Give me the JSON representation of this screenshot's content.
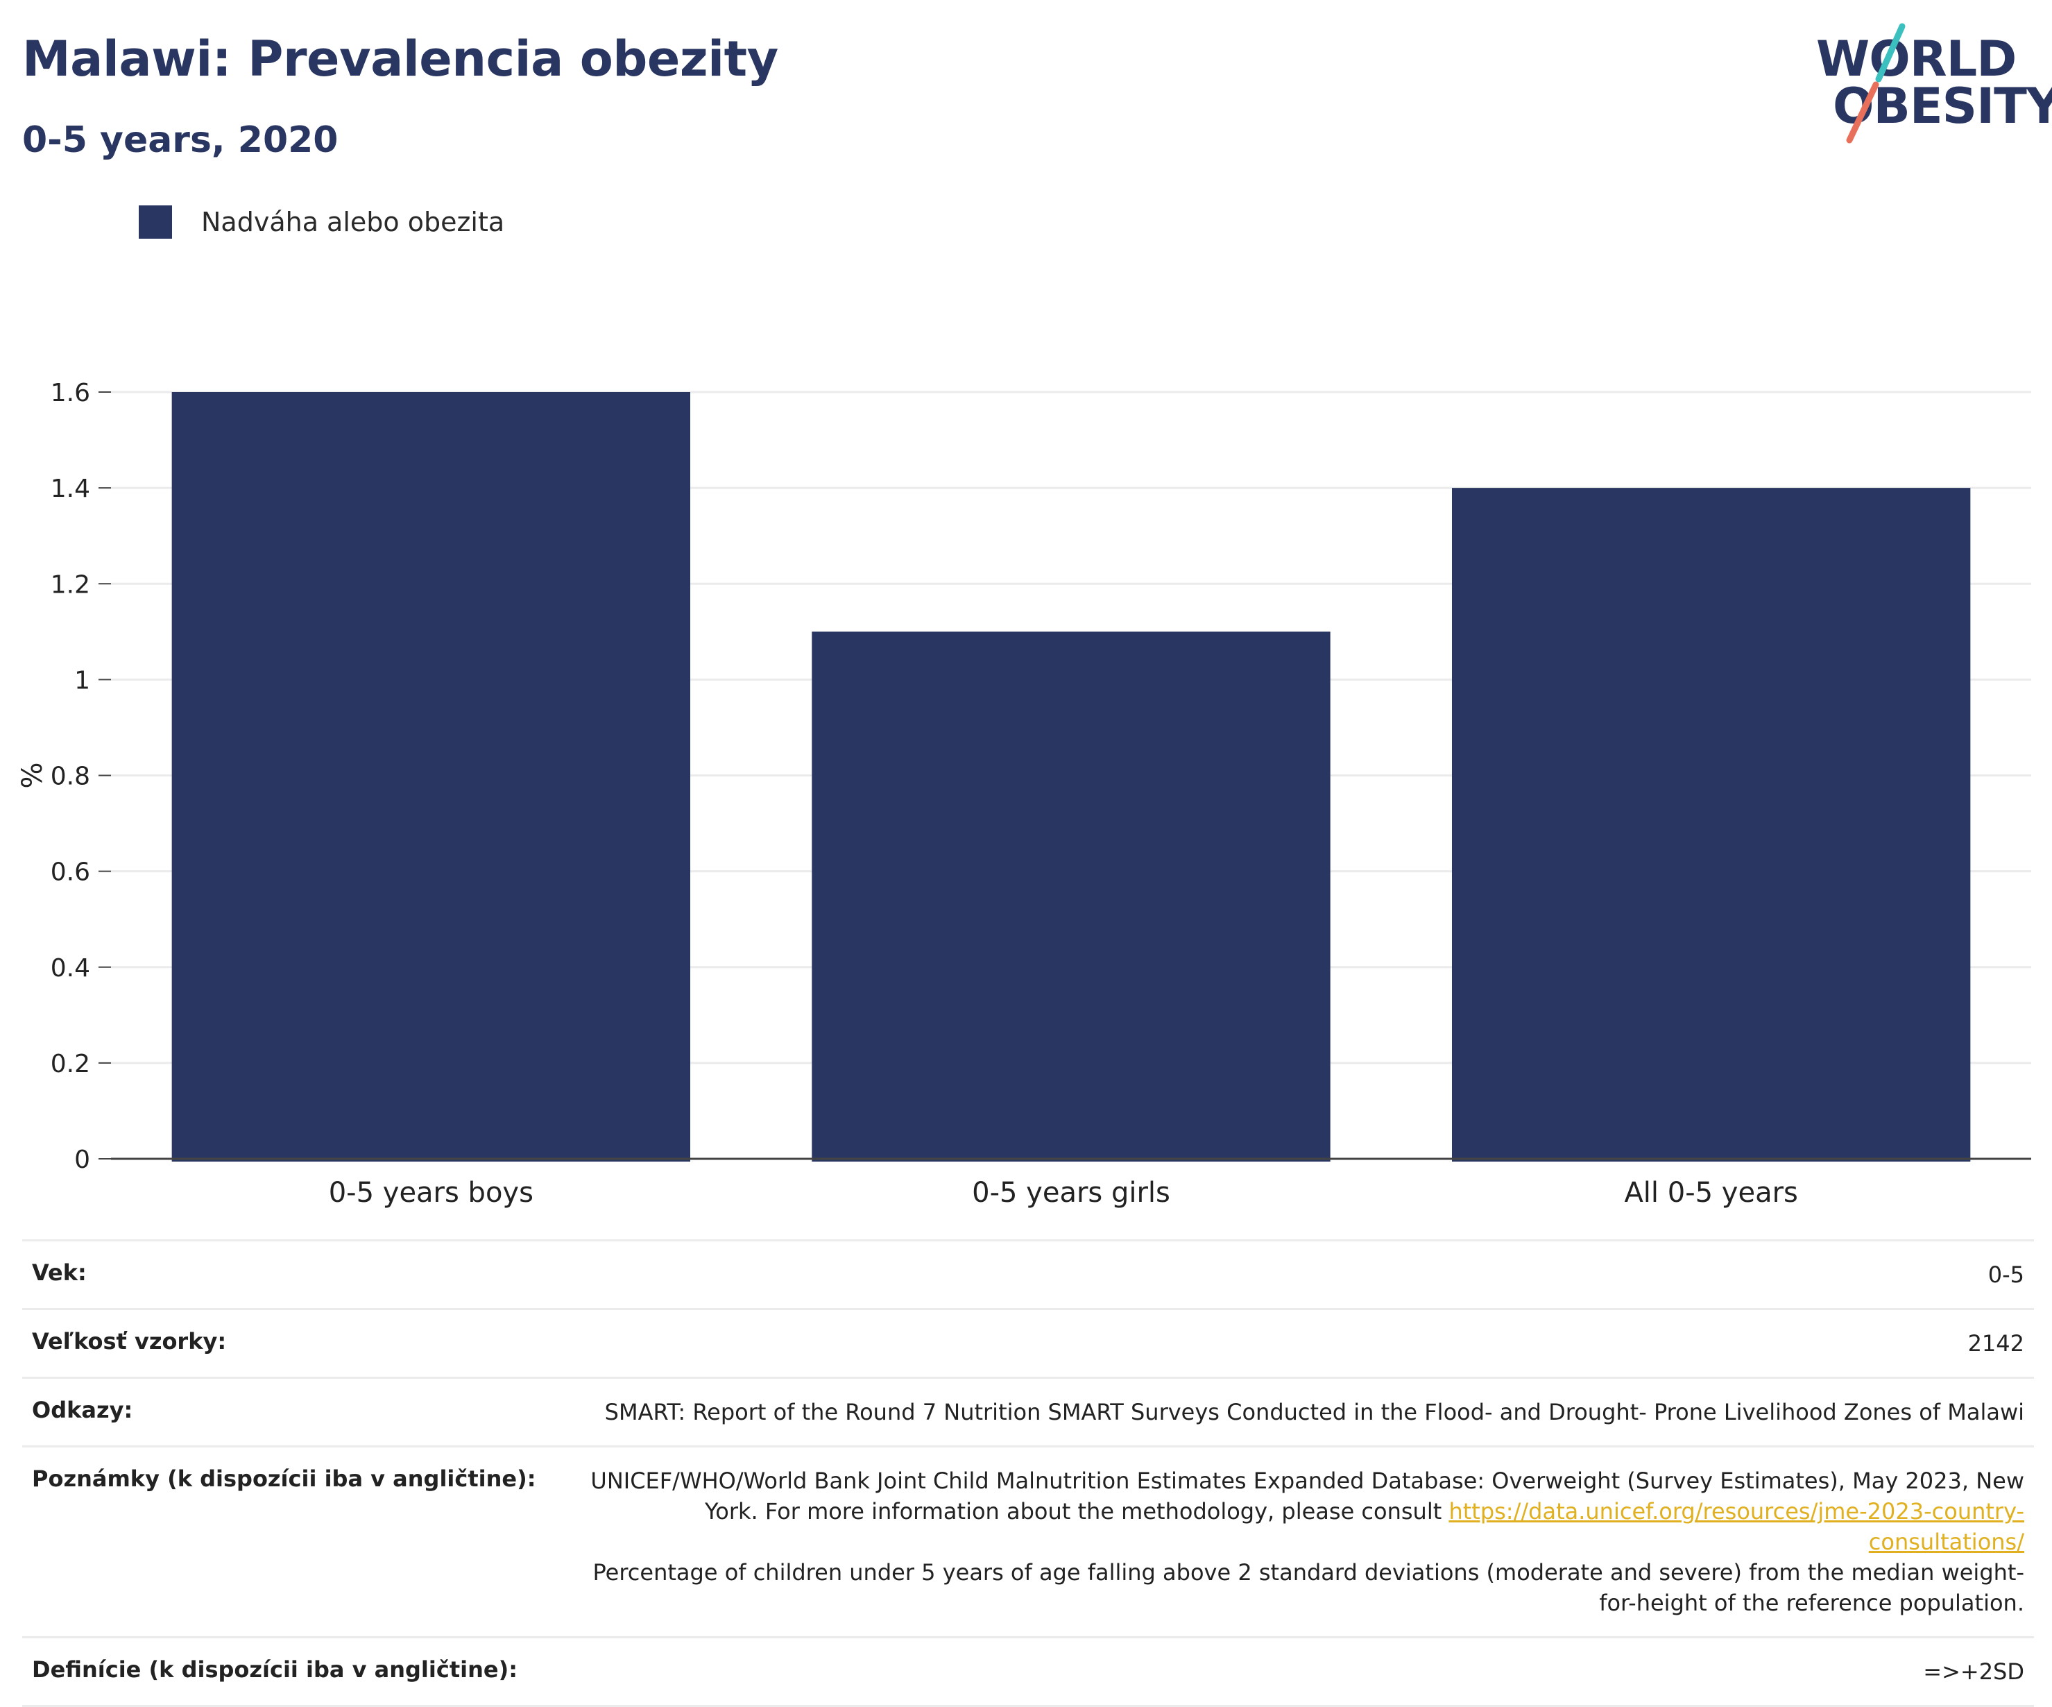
{
  "header": {
    "title": "Malawi: Prevalencia obezity",
    "subtitle": "0-5 years, 2020"
  },
  "logo": {
    "line1": "WORLD",
    "line2": "OBESITY",
    "colors": {
      "text": "#2a3662",
      "slash_top": "#3cbfbf",
      "slash_bottom": "#e8705a"
    }
  },
  "legend": {
    "label": "Nadváha alebo obezita"
  },
  "chart_data": {
    "type": "bar",
    "categories": [
      "0-5 years boys",
      "0-5 years girls",
      "All 0-5 years"
    ],
    "series": [
      {
        "name": "Nadváha alebo obezita",
        "values": [
          1.6,
          1.1,
          1.4
        ],
        "color": "#2a3662"
      }
    ],
    "title": "Malawi: Prevalencia obezity",
    "subtitle": "0-5 years, 2020",
    "xlabel": "",
    "ylabel": "%",
    "ylim": [
      0,
      1.6
    ],
    "yticks": [
      0,
      0.2,
      0.4,
      0.6,
      0.8,
      1,
      1.2,
      1.4,
      1.6
    ],
    "ytick_labels": [
      "0",
      "0.2",
      "0.4",
      "0.6",
      "0.8",
      "1",
      "1.2",
      "1.4",
      "1.6"
    ],
    "grid": true,
    "legend_position": "top-left"
  },
  "info": {
    "rows": [
      {
        "key": "Vek:",
        "value": "0-5"
      },
      {
        "key": "Veľkosť vzorky:",
        "value": "2142"
      },
      {
        "key": "Odkazy:",
        "value": "SMART: Report of the Round 7 Nutrition SMART Surveys Conducted in the Flood- and Drought- Prone Livelihood Zones of Malawi"
      },
      {
        "key": "Poznámky (k dispozícii iba v angličtine):",
        "value_part1": "UNICEF/WHO/World Bank Joint Child Malnutrition Estimates Expanded Database: Overweight (Survey Estimates), May 2023, New York. For more information about the methodology, please consult ",
        "link": "https://data.unicef.org/resources/jme-2023-country-consultations/",
        "value_part2": "Percentage of children under 5 years of age falling above 2 standard deviations (moderate and severe) from the median weight-for-height of the reference population."
      },
      {
        "key": "Definície (k dispozícii iba v angličtine):",
        "value": "=>+2SD"
      }
    ]
  }
}
